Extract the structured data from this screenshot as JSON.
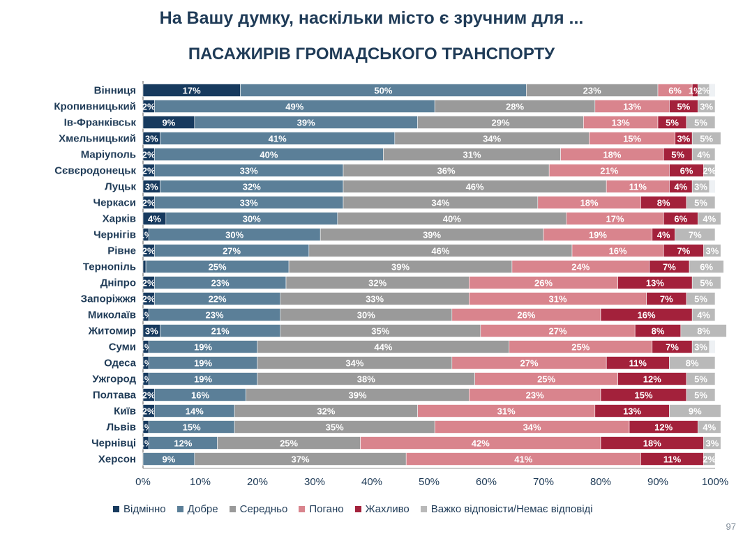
{
  "title": "На Вашу думку, наскільки місто є зручним для ...",
  "subtitle": "ПАСАЖИРІВ ГРОМАДСЬКОГО ТРАНСПОРТУ",
  "page_number": "97",
  "colors": {
    "Відмінно": "#173a5e",
    "Добре": "#5b7f98",
    "Середньо": "#9a9a9a",
    "Погано": "#d9848d",
    "Жахливо": "#a3213b",
    "Важко відповісти/Немає відповіді": "#b9b9b9"
  },
  "chart_data": {
    "type": "bar",
    "orientation": "horizontal",
    "stacked": true,
    "title": "ПАСАЖИРІВ ГРОМАДСЬКОГО ТРАНСПОРТУ",
    "xlim": [
      0,
      100
    ],
    "xticks": [
      "0%",
      "10%",
      "20%",
      "30%",
      "40%",
      "50%",
      "60%",
      "70%",
      "80%",
      "90%",
      "100%"
    ],
    "legend_position": "bottom",
    "categories": [
      "Вінниця",
      "Кропивницький",
      "Ів-Франківськ",
      "Хмельницький",
      "Маріуполь",
      "Сєвєродонецьк",
      "Луцьк",
      "Черкаси",
      "Харків",
      "Чернігів",
      "Рівне",
      "Тернопіль",
      "Дніпро",
      "Запоріжжя",
      "Миколаїв",
      "Житомир",
      "Суми",
      "Одеса",
      "Ужгород",
      "Полтава",
      "Київ",
      "Львів",
      "Чернівці",
      "Херсон"
    ],
    "series": [
      {
        "name": "Відмінно",
        "values": [
          17,
          2,
          9,
          3,
          2,
          2,
          3,
          2,
          4,
          1,
          2,
          0.5,
          2,
          2,
          1,
          3,
          1,
          1,
          1,
          2,
          2,
          1,
          1,
          0
        ],
        "labels": [
          "17%",
          "2%",
          "9%",
          "3%",
          "2%",
          "2%",
          "3%",
          "2%",
          "4%",
          "1%",
          "2%",
          "",
          "2%",
          "2%",
          "1%",
          "3%",
          "1%",
          "1%",
          "1%",
          "2%",
          "2%",
          "1%",
          "1%",
          ""
        ]
      },
      {
        "name": "Добре",
        "values": [
          50,
          49,
          39,
          41,
          40,
          33,
          32,
          33,
          30,
          30,
          27,
          25,
          23,
          22,
          23,
          21,
          19,
          19,
          19,
          16,
          14,
          15,
          12,
          9
        ],
        "labels": [
          "50%",
          "49%",
          "39%",
          "41%",
          "40%",
          "33%",
          "32%",
          "33%",
          "30%",
          "30%",
          "27%",
          "25%",
          "23%",
          "22%",
          "23%",
          "21%",
          "19%",
          "19%",
          "19%",
          "16%",
          "14%",
          "15%",
          "12%",
          "9%"
        ]
      },
      {
        "name": "Середньо",
        "values": [
          23,
          28,
          29,
          34,
          31,
          36,
          46,
          34,
          40,
          39,
          46,
          39,
          32,
          33,
          30,
          35,
          44,
          34,
          38,
          39,
          32,
          35,
          25,
          37
        ],
        "labels": [
          "23%",
          "28%",
          "29%",
          "34%",
          "31%",
          "36%",
          "46%",
          "34%",
          "40%",
          "39%",
          "46%",
          "39%",
          "32%",
          "33%",
          "30%",
          "35%",
          "44%",
          "34%",
          "38%",
          "39%",
          "32%",
          "35%",
          "25%",
          "37%"
        ]
      },
      {
        "name": "Погано",
        "values": [
          6,
          13,
          13,
          15,
          18,
          21,
          11,
          18,
          17,
          19,
          16,
          24,
          26,
          31,
          26,
          27,
          25,
          27,
          25,
          23,
          31,
          34,
          42,
          41
        ],
        "labels": [
          "6%",
          "13%",
          "13%",
          "15%",
          "18%",
          "21%",
          "11%",
          "18%",
          "17%",
          "19%",
          "16%",
          "24%",
          "26%",
          "31%",
          "26%",
          "27%",
          "25%",
          "27%",
          "25%",
          "23%",
          "31%",
          "34%",
          "42%",
          "41%"
        ]
      },
      {
        "name": "Жахливо",
        "values": [
          1,
          5,
          5,
          3,
          5,
          6,
          4,
          8,
          6,
          4,
          7,
          7,
          13,
          7,
          16,
          8,
          7,
          11,
          12,
          15,
          13,
          12,
          18,
          11
        ],
        "labels": [
          "1%",
          "5%",
          "5%",
          "3%",
          "5%",
          "6%",
          "4%",
          "8%",
          "6%",
          "4%",
          "7%",
          "7%",
          "13%",
          "7%",
          "16%",
          "8%",
          "7%",
          "11%",
          "12%",
          "15%",
          "13%",
          "12%",
          "18%",
          "11%"
        ]
      },
      {
        "name": "Важко відповісти/Немає відповіді",
        "values": [
          2,
          3,
          5,
          5,
          4,
          2,
          3,
          5,
          4,
          7,
          3,
          6,
          5,
          5,
          4,
          8,
          3,
          8,
          5,
          5,
          9,
          4,
          3,
          2
        ],
        "labels": [
          "2%",
          "3%",
          "5%",
          "5%",
          "4%",
          "2%",
          "3%",
          "5%",
          "4%",
          "7%",
          "3%",
          "6%",
          "5%",
          "5%",
          "4%",
          "8%",
          "3%",
          "8%",
          "5%",
          "5%",
          "9%",
          "4%",
          "3%",
          "2%"
        ]
      }
    ]
  }
}
